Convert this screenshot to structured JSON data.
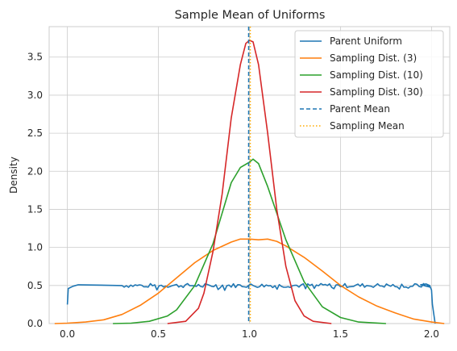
{
  "chart_data": {
    "type": "line",
    "title": "Sample Mean of Uniforms",
    "xlabel": "",
    "ylabel": "Density",
    "xlim": [
      -0.1,
      2.1
    ],
    "ylim": [
      0,
      3.9
    ],
    "xticks": [
      0.0,
      0.5,
      1.0,
      1.5,
      2.0
    ],
    "xtick_labels": [
      "0.0",
      "0.5",
      "1.0",
      "1.5",
      "2.0"
    ],
    "yticks": [
      0.0,
      0.5,
      1.0,
      1.5,
      2.0,
      2.5,
      3.0,
      3.5
    ],
    "ytick_labels": [
      "0.0",
      "0.5",
      "1.0",
      "1.5",
      "2.0",
      "2.5",
      "3.0",
      "3.5"
    ],
    "grid": true,
    "legend_position": "top-right",
    "series": [
      {
        "name": "Parent Uniform",
        "color": "#1f77b4",
        "style": "noisy-uniform",
        "points": [
          [
            0.0,
            0.25
          ],
          [
            0.005,
            0.46
          ],
          [
            0.03,
            0.49
          ],
          [
            0.06,
            0.51
          ]
        ],
        "end_points": [
          [
            1.94,
            0.51
          ],
          [
            1.97,
            0.52
          ],
          [
            1.99,
            0.5
          ],
          [
            2.0,
            0.44
          ],
          [
            2.005,
            0.25
          ],
          [
            2.02,
            0.0
          ]
        ],
        "noise_range": [
          0.3,
          2.0
        ],
        "level": 0.5
      },
      {
        "name": "Sampling Dist. (3)",
        "color": "#ff7f0e",
        "points": [
          [
            -0.07,
            0.0
          ],
          [
            0.0,
            0.005
          ],
          [
            0.1,
            0.02
          ],
          [
            0.2,
            0.05
          ],
          [
            0.3,
            0.12
          ],
          [
            0.4,
            0.24
          ],
          [
            0.5,
            0.4
          ],
          [
            0.6,
            0.6
          ],
          [
            0.7,
            0.8
          ],
          [
            0.8,
            0.96
          ],
          [
            0.9,
            1.07
          ],
          [
            0.95,
            1.11
          ],
          [
            1.0,
            1.11
          ],
          [
            1.05,
            1.1
          ],
          [
            1.1,
            1.11
          ],
          [
            1.15,
            1.08
          ],
          [
            1.2,
            1.02
          ],
          [
            1.3,
            0.87
          ],
          [
            1.4,
            0.69
          ],
          [
            1.5,
            0.5
          ],
          [
            1.6,
            0.35
          ],
          [
            1.7,
            0.23
          ],
          [
            1.8,
            0.14
          ],
          [
            1.9,
            0.06
          ],
          [
            2.0,
            0.02
          ],
          [
            2.07,
            0.0
          ]
        ]
      },
      {
        "name": "Sampling Dist. (10)",
        "color": "#2ca02c",
        "points": [
          [
            0.25,
            0.0
          ],
          [
            0.35,
            0.005
          ],
          [
            0.45,
            0.03
          ],
          [
            0.55,
            0.1
          ],
          [
            0.6,
            0.18
          ],
          [
            0.7,
            0.5
          ],
          [
            0.8,
            1.05
          ],
          [
            0.85,
            1.45
          ],
          [
            0.9,
            1.85
          ],
          [
            0.95,
            2.05
          ],
          [
            1.0,
            2.12
          ],
          [
            1.02,
            2.16
          ],
          [
            1.05,
            2.1
          ],
          [
            1.1,
            1.8
          ],
          [
            1.15,
            1.45
          ],
          [
            1.2,
            1.1
          ],
          [
            1.3,
            0.55
          ],
          [
            1.4,
            0.22
          ],
          [
            1.5,
            0.08
          ],
          [
            1.6,
            0.02
          ],
          [
            1.75,
            0.0
          ]
        ]
      },
      {
        "name": "Sampling Dist. (30)",
        "color": "#d62728",
        "points": [
          [
            0.55,
            0.0
          ],
          [
            0.65,
            0.03
          ],
          [
            0.72,
            0.2
          ],
          [
            0.75,
            0.4
          ],
          [
            0.8,
            0.95
          ],
          [
            0.85,
            1.7
          ],
          [
            0.9,
            2.7
          ],
          [
            0.95,
            3.4
          ],
          [
            0.98,
            3.68
          ],
          [
            1.0,
            3.72
          ],
          [
            1.02,
            3.7
          ],
          [
            1.05,
            3.4
          ],
          [
            1.1,
            2.5
          ],
          [
            1.15,
            1.5
          ],
          [
            1.2,
            0.75
          ],
          [
            1.25,
            0.3
          ],
          [
            1.3,
            0.1
          ],
          [
            1.35,
            0.03
          ],
          [
            1.45,
            0.0
          ]
        ]
      }
    ],
    "vlines": [
      {
        "name": "Parent Mean",
        "x": 1.0,
        "color": "#1f77b4",
        "dash": "dashed"
      },
      {
        "name": "Sampling Mean",
        "x": 1.0,
        "color": "#ffaa00",
        "dash": "dotted"
      }
    ]
  }
}
